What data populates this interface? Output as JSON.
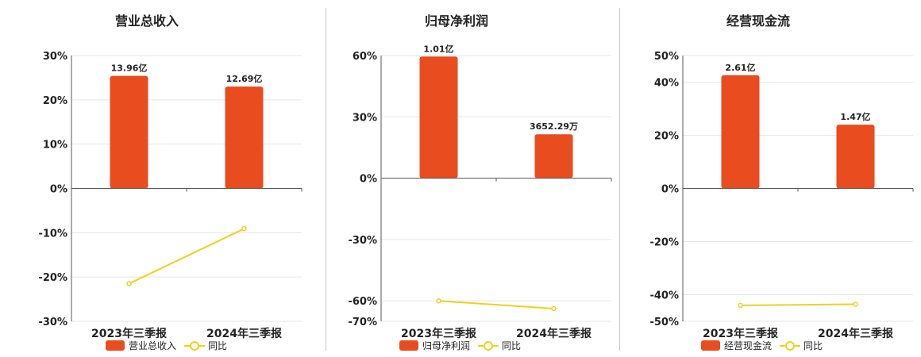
{
  "colors": {
    "bar": "#e84c1f",
    "line": "#f0d01e",
    "grid": "#e6e6e6",
    "axis": "#555555"
  },
  "chart_data": [
    {
      "type": "bar",
      "title": "营业总收入",
      "categories": [
        "2023年三季报",
        "2024年三季报"
      ],
      "bar_labels": [
        "13.96亿",
        "12.69亿"
      ],
      "bar_values_pct_axis": [
        25.4,
        23.0
      ],
      "ylim": [
        -30,
        30
      ],
      "yticks": [
        30,
        20,
        10,
        0,
        -10,
        -20,
        -30
      ],
      "series": [
        {
          "name": "营业总收入",
          "type": "bar",
          "values": [
            13.96,
            12.69
          ],
          "unit": "亿"
        },
        {
          "name": "同比",
          "type": "line",
          "values": [
            -21.5,
            -9.1
          ]
        }
      ],
      "legend": [
        "营业总收入",
        "同比"
      ],
      "legend_position": "bottom",
      "grid": true
    },
    {
      "type": "bar",
      "title": "归母净利润",
      "categories": [
        "2023年三季报",
        "2024年三季报"
      ],
      "bar_labels": [
        "1.01亿",
        "3652.29万"
      ],
      "bar_values_pct_axis": [
        59.5,
        21.5
      ],
      "ylim": [
        -70,
        60
      ],
      "yticks": [
        60,
        30,
        0,
        -30,
        -60,
        -70
      ],
      "series": [
        {
          "name": "归母净利润",
          "type": "bar",
          "values": [
            1.01,
            0.365229
          ],
          "unit": "亿"
        },
        {
          "name": "同比",
          "type": "line",
          "values": [
            -60.0,
            -63.8
          ]
        }
      ],
      "legend": [
        "归母净利润",
        "同比"
      ],
      "legend_position": "bottom",
      "grid": true
    },
    {
      "type": "bar",
      "title": "经营现金流",
      "categories": [
        "2023年三季报",
        "2024年三季报"
      ],
      "bar_labels": [
        "2.61亿",
        "1.47亿"
      ],
      "bar_values_pct_axis": [
        42.6,
        24.0
      ],
      "ylim": [
        -50,
        50
      ],
      "yticks": [
        50,
        40,
        20,
        0,
        -20,
        -40,
        -50
      ],
      "series": [
        {
          "name": "经营现金流",
          "type": "bar",
          "values": [
            2.61,
            1.47
          ],
          "unit": "亿"
        },
        {
          "name": "同比",
          "type": "line",
          "values": [
            -44.0,
            -43.6
          ]
        }
      ],
      "legend": [
        "经营现金流",
        "同比"
      ],
      "legend_position": "bottom",
      "grid": true
    }
  ]
}
